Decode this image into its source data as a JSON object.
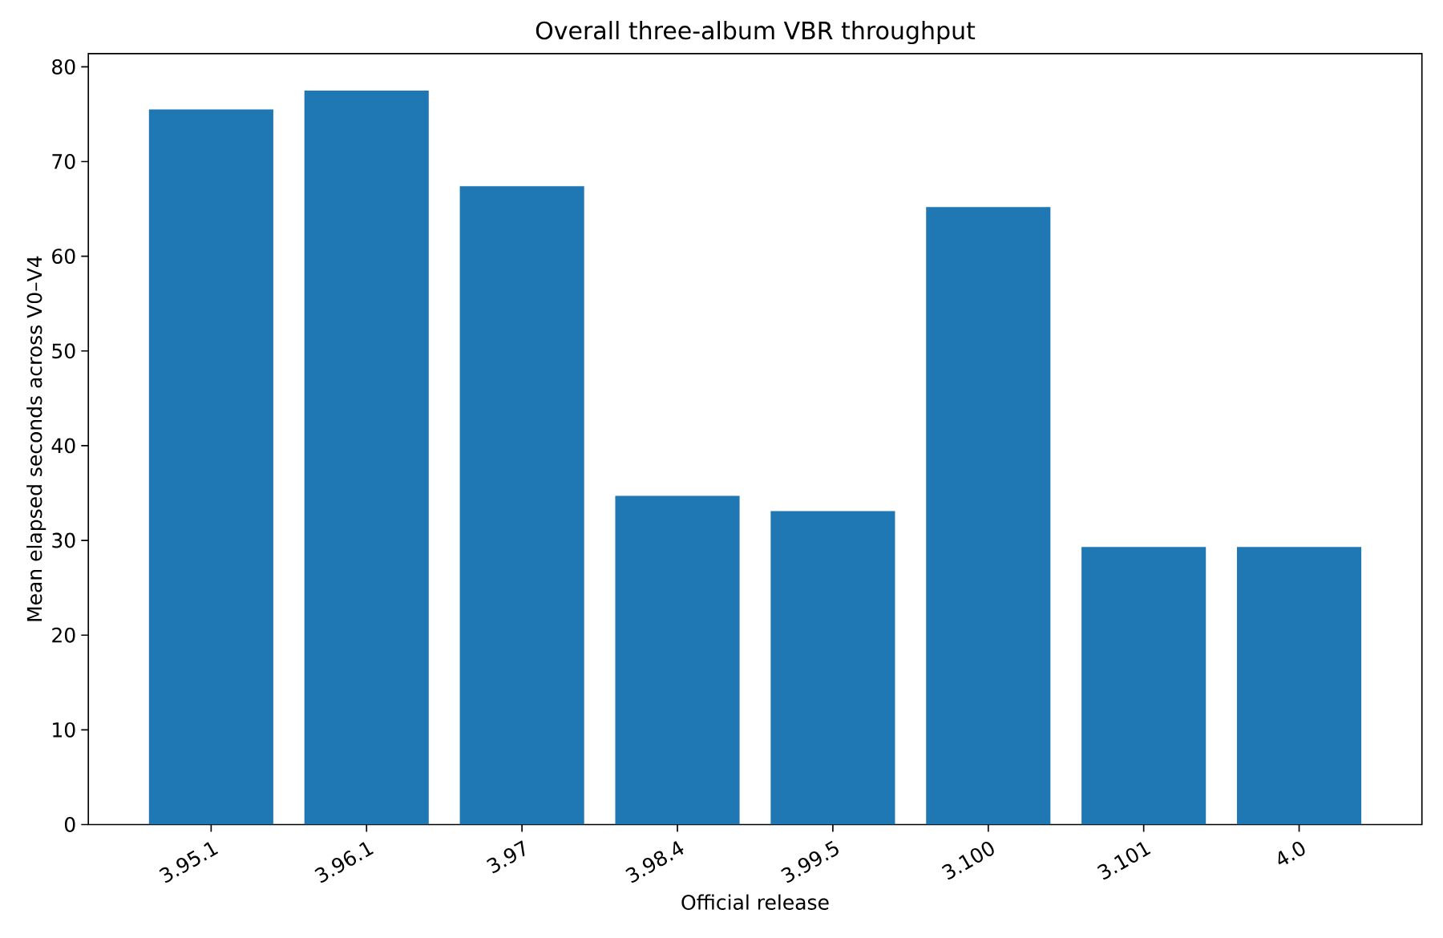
{
  "chart_data": {
    "type": "bar",
    "title": "Overall three-album VBR throughput",
    "xlabel": "Official release",
    "ylabel": "Mean elapsed seconds across V0–V4",
    "categories": [
      "3.95.1",
      "3.96.1",
      "3.97",
      "3.98.4",
      "3.99.5",
      "3.100",
      "3.101",
      "4.0"
    ],
    "values": [
      75.5,
      77.5,
      67.4,
      34.7,
      33.1,
      65.2,
      29.3,
      29.3
    ],
    "color": "#1f77b4",
    "ylim": [
      0,
      81.4
    ],
    "yticks": [
      0,
      10,
      20,
      30,
      40,
      50,
      60,
      70,
      80
    ]
  }
}
